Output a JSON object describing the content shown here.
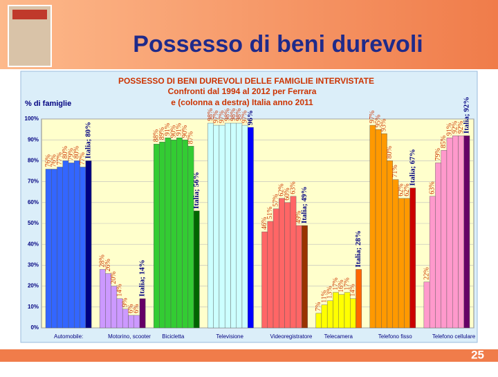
{
  "slide": {
    "title": "Possesso di beni durevoli",
    "page_number": "25"
  },
  "chart_data": {
    "type": "bar",
    "title": [
      "POSSESSO DI BENI DUREVOLI DELLE FAMIGLIE INTERVISTATE",
      "Confronti dal 1994 al 2012 per Ferrara",
      "e (colonna a destra) Italia anno 2011"
    ],
    "y_label": "% di famiglie",
    "ylim": [
      0,
      100
    ],
    "yticks": [
      {
        "value": 0,
        "label": "0%"
      },
      {
        "value": 10,
        "label": "10%"
      },
      {
        "value": 20,
        "label": "20%"
      },
      {
        "value": 30,
        "label": "30%"
      },
      {
        "value": 40,
        "label": "40%"
      },
      {
        "value": 50,
        "label": "50%"
      },
      {
        "value": 60,
        "label": "60%"
      },
      {
        "value": 70,
        "label": "70%"
      },
      {
        "value": 80,
        "label": "80%"
      },
      {
        "value": 90,
        "label": "90%"
      },
      {
        "value": 100,
        "label": "100%"
      }
    ],
    "grid": true,
    "categories": [
      "Automobile:",
      "Motorino, scooter",
      "Bicicletta",
      "Televisione",
      "Videoregistratore",
      "Telecamera",
      "Telefono fisso",
      "Telefono cellulare"
    ],
    "groups": [
      {
        "color": "#3366ff",
        "values": [
          76,
          76,
          77,
          80,
          79,
          80,
          77
        ],
        "value_labels": [
          "76%",
          "76%",
          "77%",
          "80%",
          "79%",
          "80%",
          "77%"
        ],
        "italia_color": "#000080",
        "italia_value": 80,
        "italia_label": "Italia; 80%"
      },
      {
        "color": "#cc99ff",
        "values": [
          28,
          26,
          20,
          14,
          9,
          6,
          6
        ],
        "value_labels": [
          "28%",
          "26%",
          "20%",
          "14%",
          "9%",
          "6%",
          "6%"
        ],
        "italia_color": "#660066",
        "italia_value": 14,
        "italia_label": "Italia; 14%"
      },
      {
        "color": "#33cc33",
        "values": [
          88,
          89,
          91,
          90,
          91,
          90,
          87
        ],
        "value_labels": [
          "88%",
          "89%",
          "91%",
          "90%",
          "91%",
          "90%",
          "87%"
        ],
        "italia_color": "#006600",
        "italia_value": 56,
        "italia_label": "Italia; 56%"
      },
      {
        "color": "#ccffff",
        "values": [
          98,
          97,
          97,
          98,
          98,
          98,
          97
        ],
        "value_labels": [
          "98%",
          "97%",
          "97%",
          "98%",
          "98%",
          "98%",
          "97%"
        ],
        "italia_color": "#0000ff",
        "italia_value": 96,
        "italia_label": "96%"
      },
      {
        "color": "#ff6666",
        "values": [
          46,
          51,
          57,
          62,
          60,
          63,
          49
        ],
        "value_labels": [
          "46%",
          "51%",
          "57%",
          "62%",
          "60%",
          "63%",
          "49%"
        ],
        "italia_color": "#993300",
        "italia_value": 49,
        "italia_label": "Italia; 49%"
      },
      {
        "color": "#ffff00",
        "values": [
          7,
          11,
          13,
          17,
          16,
          17,
          14
        ],
        "value_labels": [
          "7%",
          "11%",
          "13%",
          "17%",
          "16%",
          "17%",
          "14%"
        ],
        "italia_color": "#ff6600",
        "italia_value": 28,
        "italia_label": "Italia; 28%"
      },
      {
        "color": "#ff9900",
        "values": [
          97,
          95,
          93,
          80,
          71,
          62,
          62
        ],
        "value_labels": [
          "97%",
          "95%",
          "93%",
          "80%",
          "71%",
          "62%",
          "62%"
        ],
        "italia_color": "#cc0000",
        "italia_value": 67,
        "italia_label": "Italia; 67%"
      },
      {
        "color": "#ff99cc",
        "values": [
          22,
          63,
          79,
          85,
          91,
          92,
          92
        ],
        "value_labels": [
          "22%",
          "63%",
          "79%",
          "85%",
          "91%",
          "92%",
          "92%"
        ],
        "italia_color": "#660066",
        "italia_value": 92,
        "italia_label": "Italia; 92%"
      }
    ]
  }
}
